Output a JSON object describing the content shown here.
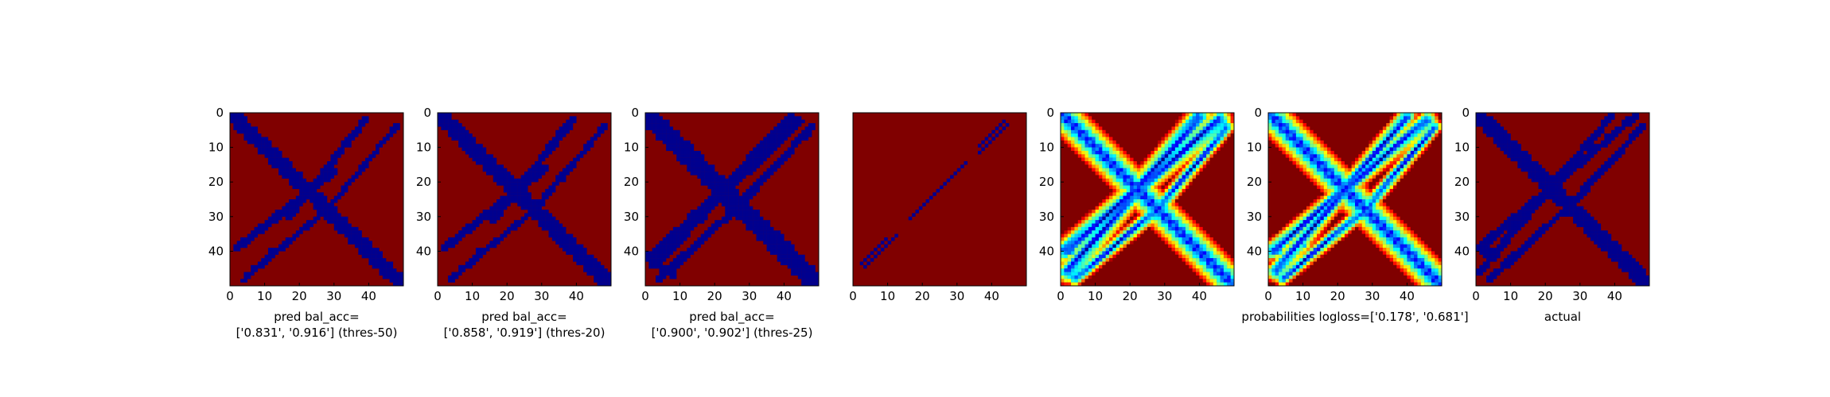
{
  "colors": {
    "background": "#800000",
    "contact": "#00008f",
    "colormap": "jet"
  },
  "chart_data": [
    {
      "type": "heatmap",
      "title": "",
      "xlabel": "pred bal_acc=\n['0.831', '0.916'] (thres-50)",
      "ylabel": "",
      "xticks": [
        0,
        10,
        20,
        30,
        40
      ],
      "yticks": [
        0,
        10,
        20,
        30,
        40
      ],
      "xlim": [
        0,
        50
      ],
      "ylim": [
        50,
        0
      ],
      "mode": "binary",
      "diag_width": 3.2,
      "bands": [
        {
          "x0": 39,
          "y0": 2,
          "x1": 17,
          "y1": 30,
          "width": 1.6
        },
        {
          "x0": 48,
          "y0": 4,
          "x1": 28,
          "y1": 28,
          "width": 1.2
        }
      ],
      "blobs": [
        [
          3,
          38,
          2
        ],
        [
          12,
          40,
          1.5
        ],
        [
          7,
          45,
          1.2
        ]
      ]
    },
    {
      "type": "heatmap",
      "title": "",
      "xlabel": "pred bal_acc=\n['0.858', '0.919'] (thres-20)",
      "ylabel": "",
      "xticks": [
        0,
        10,
        20,
        30,
        40
      ],
      "yticks": [
        0,
        10,
        20,
        30,
        40
      ],
      "xlim": [
        0,
        50
      ],
      "ylim": [
        50,
        0
      ],
      "mode": "binary",
      "diag_width": 3.6,
      "bands": [
        {
          "x0": 39,
          "y0": 2,
          "x1": 16,
          "y1": 31,
          "width": 1.8
        },
        {
          "x0": 48,
          "y0": 4,
          "x1": 28,
          "y1": 28,
          "width": 1.4
        }
      ],
      "blobs": [
        [
          3,
          38,
          2
        ],
        [
          12,
          40,
          1.5
        ],
        [
          7,
          45,
          1.2
        ]
      ]
    },
    {
      "type": "heatmap",
      "title": "",
      "xlabel": "pred bal_acc=\n['0.900', '0.902'] (thres-25)",
      "ylabel": "",
      "xticks": [
        0,
        10,
        20,
        30,
        40
      ],
      "yticks": [
        0,
        10,
        20,
        30,
        40
      ],
      "xlim": [
        0,
        50
      ],
      "ylim": [
        50,
        0
      ],
      "mode": "binary",
      "diag_width": 4.2,
      "bands": [
        {
          "x0": 42,
          "y0": 1,
          "x1": 3,
          "y1": 44,
          "width": 2.2
        },
        {
          "x0": 48,
          "y0": 4,
          "x1": 26,
          "y1": 28,
          "width": 1.8
        },
        {
          "x0": 44,
          "y0": 2,
          "x1": 36,
          "y1": 8,
          "width": 1.5
        }
      ],
      "blobs": [
        [
          5,
          45,
          2
        ],
        [
          8,
          47,
          1.5
        ],
        [
          3,
          40,
          1.6
        ]
      ]
    },
    {
      "type": "heatmap",
      "title": "",
      "xlabel": "",
      "ylabel": "",
      "xticks": [
        0,
        10,
        20,
        30,
        40
      ],
      "yticks": [],
      "xlim": [
        0,
        50
      ],
      "ylim": [
        50,
        0
      ],
      "mode": "binary",
      "diag_width": 0,
      "bands": [
        {
          "x0": 44,
          "y0": 2,
          "x1": 3,
          "y1": 45,
          "width": 0.45
        }
      ],
      "blobs": []
    },
    {
      "type": "heatmap",
      "title": "",
      "xlabel": "",
      "ylabel": "",
      "xticks": [
        0,
        10,
        20,
        30,
        40
      ],
      "yticks": [
        0,
        10,
        20,
        30,
        40
      ],
      "xlim": [
        0,
        50
      ],
      "ylim": [
        50,
        0
      ],
      "mode": "continuous",
      "diag_width": 5.5,
      "bands": [
        {
          "x0": 40,
          "y0": 1,
          "x1": 2,
          "y1": 46,
          "width": 4.0
        },
        {
          "x0": 48,
          "y0": 4,
          "x1": 28,
          "y1": 28,
          "width": 2.5
        }
      ],
      "blobs": [
        [
          3,
          40,
          3
        ],
        [
          10,
          38,
          2.5
        ]
      ]
    },
    {
      "type": "heatmap",
      "title": "",
      "xlabel": "probabilities logloss=['0.178', '0.681']",
      "ylabel": "",
      "xticks": [
        0,
        10,
        20,
        30,
        40
      ],
      "yticks": [
        0,
        10,
        20,
        30,
        40
      ],
      "xlim": [
        0,
        50
      ],
      "ylim": [
        50,
        0
      ],
      "mode": "continuous",
      "diag_width": 5.5,
      "bands": [
        {
          "x0": 40,
          "y0": 1,
          "x1": 2,
          "y1": 46,
          "width": 3.2
        },
        {
          "x0": 48,
          "y0": 4,
          "x1": 28,
          "y1": 28,
          "width": 2.4
        }
      ],
      "blobs": [
        [
          3,
          40,
          3
        ],
        [
          10,
          38,
          2.5
        ]
      ]
    },
    {
      "type": "heatmap",
      "title": "",
      "xlabel": "actual",
      "ylabel": "",
      "xticks": [
        0,
        10,
        20,
        30,
        40
      ],
      "yticks": [
        0,
        10,
        20,
        30,
        40
      ],
      "xlim": [
        0,
        50
      ],
      "ylim": [
        50,
        0
      ],
      "mode": "binary",
      "diag_width": 3.5,
      "bands": [
        {
          "x0": 39,
          "y0": 1,
          "x1": 1,
          "y1": 46,
          "width": 1.8
        },
        {
          "x0": 48,
          "y0": 4,
          "x1": 26,
          "y1": 28,
          "width": 1.6
        }
      ],
      "blobs": [
        [
          3,
          40,
          2.5
        ],
        [
          8,
          37,
          2
        ]
      ]
    }
  ]
}
